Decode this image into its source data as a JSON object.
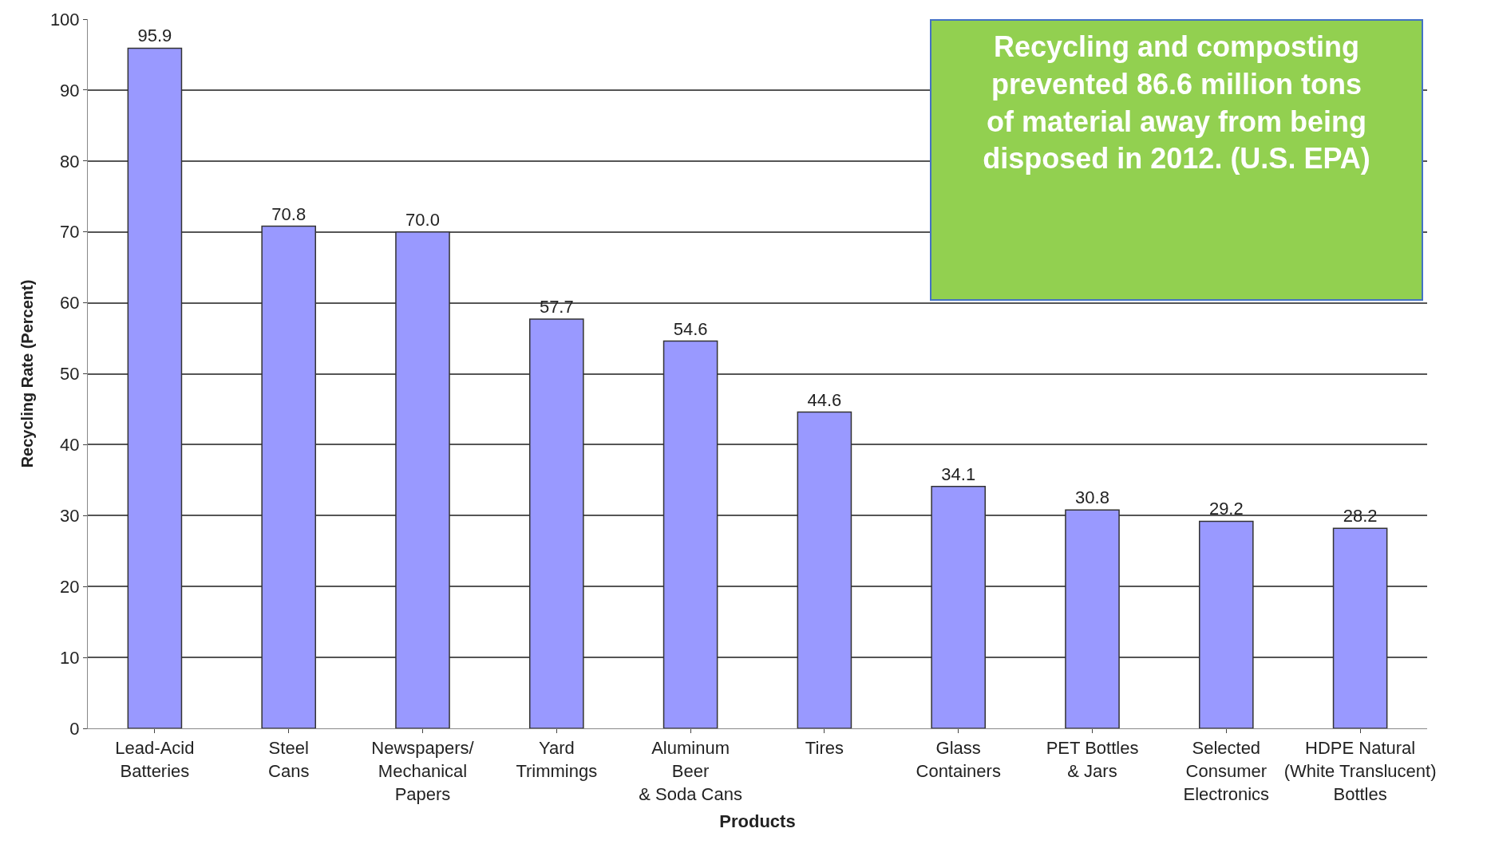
{
  "chart_data": {
    "type": "bar",
    "xlabel": "Products",
    "ylabel": "Recycling Rate (Percent)",
    "categories": [
      "Lead-Acid\nBatteries",
      "Steel\nCans",
      "Newspapers/\nMechanical\nPapers",
      "Yard\nTrimmings",
      "Aluminum\nBeer\n& Soda Cans",
      "Tires",
      "Glass\nContainers",
      "PET Bottles\n& Jars",
      "Selected\nConsumer\nElectronics",
      "HDPE Natural\n(White Translucent)\nBottles"
    ],
    "values": [
      95.9,
      70.8,
      70.0,
      57.7,
      54.6,
      44.6,
      34.1,
      30.8,
      29.2,
      28.2
    ],
    "value_labels": [
      "95.9",
      "70.8",
      "70.0",
      "57.7",
      "54.6",
      "44.6",
      "34.1",
      "30.8",
      "29.2",
      "28.2"
    ],
    "color": "#9999ff",
    "ylim": [
      0,
      100
    ],
    "yticks": [
      0,
      10,
      20,
      30,
      40,
      50,
      60,
      70,
      80,
      90,
      100
    ],
    "grid": "y",
    "annotations": [
      "Recycling and composting\nprevented 86.6 million tons\nof material away from being\ndisposed in 2012. (U.S. EPA)"
    ]
  }
}
